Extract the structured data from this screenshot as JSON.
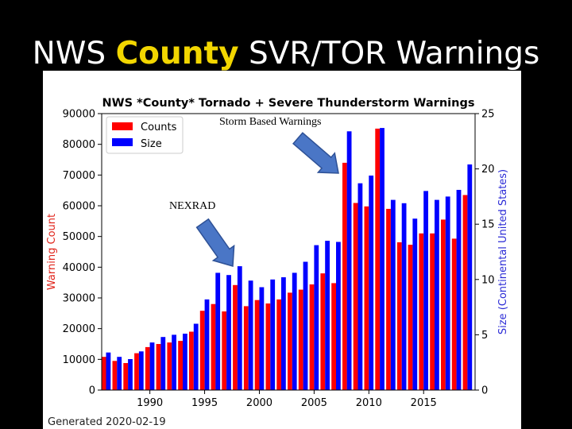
{
  "slide": {
    "title_part1": "NWS ",
    "title_highlight": "County",
    "title_part2": " SVR/TOR Warnings",
    "callout_storm": "Storm Based Warnings",
    "callout_nexrad": "NEXRAD",
    "generated": "Generated 2020-02-19",
    "colors": {
      "background": "#000000",
      "highlight": "#f2d600",
      "arrow": "#4a76c6"
    }
  },
  "chart_data": {
    "type": "bar",
    "title": "NWS *County* Tornado + Severe Thunderstorm Warnings",
    "ylabel_left": "Warning Count",
    "ylabel_right": "Size (Continental United States)",
    "ylim_left": [
      0,
      90000
    ],
    "ylim_right": [
      0,
      25
    ],
    "yticks_left": [
      0,
      10000,
      20000,
      30000,
      40000,
      50000,
      60000,
      70000,
      80000,
      90000
    ],
    "yticks_right": [
      0,
      5,
      10,
      15,
      20,
      25
    ],
    "xticks": [
      1990,
      1995,
      2000,
      2005,
      2010,
      2015
    ],
    "legend_position": "top-left",
    "categories": [
      1986,
      1987,
      1988,
      1989,
      1990,
      1991,
      1992,
      1993,
      1994,
      1995,
      1996,
      1997,
      1998,
      1999,
      2000,
      2001,
      2002,
      2003,
      2004,
      2005,
      2006,
      2007,
      2008,
      2009,
      2010,
      2011,
      2012,
      2013,
      2014,
      2015,
      2016,
      2017,
      2018,
      2019
    ],
    "series": [
      {
        "name": "Counts",
        "color": "#ff0000",
        "axis": "left",
        "values": [
          10800,
          9500,
          8800,
          12000,
          14000,
          15000,
          15500,
          16000,
          19000,
          25800,
          28000,
          25600,
          34200,
          27300,
          29300,
          28200,
          29500,
          31700,
          32700,
          34400,
          38000,
          34800,
          74000,
          60900,
          59800,
          85100,
          59000,
          48100,
          47300,
          51000,
          51000,
          55500,
          49300,
          63500
        ]
      },
      {
        "name": "Size",
        "color": "#0000ff",
        "axis": "right",
        "values": [
          3.4,
          3.0,
          2.8,
          3.5,
          4.3,
          4.8,
          5.0,
          5.1,
          6.0,
          8.2,
          10.6,
          10.4,
          11.2,
          9.9,
          9.3,
          10.0,
          10.2,
          10.6,
          11.6,
          13.1,
          13.5,
          13.4,
          23.4,
          18.7,
          19.4,
          23.7,
          17.2,
          16.9,
          15.5,
          18.0,
          17.2,
          17.5,
          18.1,
          20.4
        ]
      }
    ]
  }
}
